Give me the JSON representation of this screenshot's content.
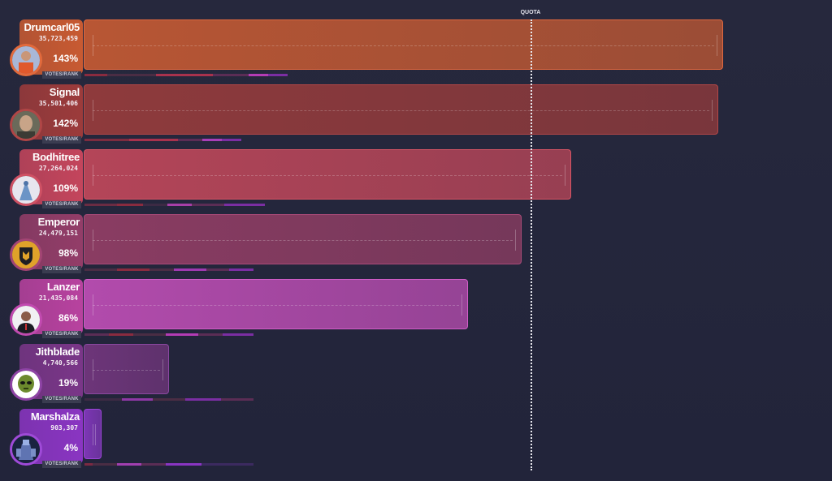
{
  "chart_data": {
    "type": "bar",
    "orientation": "horizontal",
    "reference_line": {
      "label": "QUOTA",
      "value_percent": 100
    },
    "categories": [
      "Drumcarl05",
      "Signal",
      "Bodhitree",
      "Emperor",
      "Lanzer",
      "Jithblade",
      "Marshalza"
    ],
    "values": [
      35723459,
      35501406,
      27264024,
      24479151,
      21435084,
      4740566,
      903307
    ],
    "votes_labels": [
      "35,723,459",
      "35,501,406",
      "27,264,024",
      "24,479,151",
      "21,435,084",
      "4,740,566",
      "903,307"
    ],
    "percent_of_quota": [
      143,
      142,
      109,
      98,
      86,
      19,
      4
    ],
    "percent_labels": [
      "143%",
      "142%",
      "109%",
      "98%",
      "86%",
      "19%",
      "4%"
    ],
    "row_tag": "VOTES/RANK",
    "colors": [
      {
        "bar": "#b85634",
        "edge": "#e0683f",
        "box": "#c85a32",
        "ring": "#e26a3c"
      },
      {
        "bar": "#8e3a3c",
        "edge": "#b44747",
        "box": "#9c3b3b",
        "ring": "#b04646"
      },
      {
        "bar": "#b44558",
        "edge": "#d65565",
        "box": "#c4455c",
        "ring": "#cf5164"
      },
      {
        "bar": "#8a3c62",
        "edge": "#a94a78",
        "box": "#933d68",
        "ring": "#a34574"
      },
      {
        "bar": "#b24bac",
        "edge": "#d05dc6",
        "box": "#b8429f",
        "ring": "#c24ab0"
      },
      {
        "bar": "#6d3579",
        "edge": "#8a48a0",
        "box": "#7a3688",
        "ring": "#8e43a5"
      },
      {
        "bar": "#7c36b4",
        "edge": "#9b45d8",
        "box": "#8a35c2",
        "ring": "#9f4ad8"
      }
    ],
    "avatars": [
      "man-orange-shirt-icon",
      "man-portrait-icon",
      "blue-figure-icon",
      "shield-logo-icon",
      "man-suit-icon",
      "alien-face-icon",
      "robot-figure-icon"
    ]
  }
}
